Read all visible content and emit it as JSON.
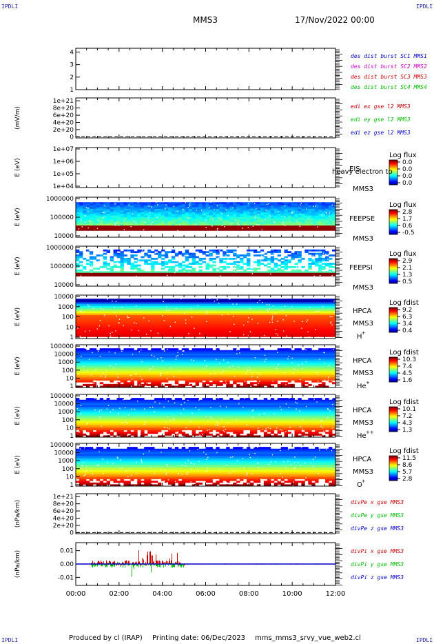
{
  "corner_label": "IPDLI",
  "header": {
    "mission": "MMS3",
    "datetime": "17/Nov/2022 00:00"
  },
  "footer": {
    "producer": "Produced by cl (IRAP)",
    "printing": "Printing date: 06/Dec/2023",
    "filename": "mms_mms3_srvy_vue_web2.cl"
  },
  "colors": {
    "blue": "#0000cc",
    "magenta": "#cc00cc",
    "red": "#cc0000",
    "green": "#00bb00"
  },
  "chart_data": [
    {
      "id": "dist",
      "type": "line",
      "ylabel": "",
      "yticks": [
        "1",
        "2",
        "3",
        "4"
      ],
      "ylim": [
        1,
        4.3
      ],
      "legend": [
        {
          "text": "des dist burst SC1 MMS1",
          "color": "blue"
        },
        {
          "text": "des dist burst SC2 MMS2",
          "color": "magenta"
        },
        {
          "text": "des dist burst SC3 MMS3",
          "color": "red"
        },
        {
          "text": "des dist burst SC4 MMS4",
          "color": "green"
        }
      ]
    },
    {
      "id": "edi",
      "type": "line",
      "ylabel": "(mV/m)",
      "yticks": [
        "0",
        "2e+20",
        "4e+20",
        "6e+20",
        "8e+20",
        "1e+21"
      ],
      "ylim": [
        -3e+19,
        1.08e+21
      ],
      "legend": [
        {
          "text": "edi ex gse l2 MMS3",
          "color": "red"
        },
        {
          "text": "edi ey gse l2 MMS3",
          "color": "green"
        },
        {
          "text": "edi ez gse l2 MMS3",
          "color": "blue"
        }
      ]
    },
    {
      "id": "eis",
      "type": "heatmap",
      "ylabel": "E (eV)",
      "yticks": [
        "1e+04",
        "1e+05",
        "1e+06",
        "1e+07"
      ],
      "instrument": "EIS",
      "sub": "MMS3",
      "extra": "heavy electron to",
      "cbar_title": "Log flux",
      "cbar_ticks": [
        "0.0",
        "0.0",
        "0.0",
        "0.0"
      ]
    },
    {
      "id": "feepse",
      "type": "heatmap",
      "ylabel": "E (eV)",
      "yticks": [
        "10000",
        "100000",
        "1000000"
      ],
      "instrument": "FEEPSE",
      "sub": "MMS3",
      "cbar_title": "Log flux",
      "cbar_ticks": [
        "2.8",
        "1.7",
        "0.6",
        "-0.5"
      ]
    },
    {
      "id": "feepsi",
      "type": "heatmap",
      "ylabel": "E (eV)",
      "yticks": [
        "10000",
        "100000",
        "1000000"
      ],
      "instrument": "FEEPSI",
      "sub": "MMS3",
      "cbar_title": "Log flux",
      "cbar_ticks": [
        "2.9",
        "2.1",
        "1.3",
        "0.5"
      ]
    },
    {
      "id": "hpca_h",
      "type": "heatmap",
      "ylabel": "E (eV)",
      "yticks": [
        "1",
        "10",
        "100",
        "1000",
        "10000"
      ],
      "instrument": "HPCA",
      "sub": "MMS3",
      "species": "H",
      "sup": "+",
      "cbar_title": "Log fdist",
      "cbar_ticks": [
        "9.2",
        "6.3",
        "3.4",
        "0.4"
      ]
    },
    {
      "id": "hpca_he",
      "type": "heatmap",
      "ylabel": "E (eV)",
      "yticks": [
        "1",
        "10",
        "100",
        "1000",
        "10000",
        "100000"
      ],
      "instrument": "HPCA",
      "sub": "MMS3",
      "species": "He",
      "sup": "+",
      "cbar_title": "Log fdist",
      "cbar_ticks": [
        "10.3",
        "7.4",
        "4.5",
        "1.6"
      ]
    },
    {
      "id": "hpca_hepp",
      "type": "heatmap",
      "ylabel": "E (eV)",
      "yticks": [
        "1",
        "10",
        "100",
        "1000",
        "10000",
        "100000"
      ],
      "instrument": "HPCA",
      "sub": "MMS3",
      "species": "He",
      "sup": "++",
      "cbar_title": "Log fdist",
      "cbar_ticks": [
        "10.1",
        "7.2",
        "4.3",
        "1.3"
      ]
    },
    {
      "id": "hpca_o",
      "type": "heatmap",
      "ylabel": "E (eV)",
      "yticks": [
        "1",
        "10",
        "100",
        "1000",
        "10000",
        "100000"
      ],
      "instrument": "HPCA",
      "sub": "MMS3",
      "species": "O",
      "sup": "+",
      "cbar_title": "Log fdist",
      "cbar_ticks": [
        "11.5",
        "8.6",
        "5.7",
        "2.8"
      ]
    },
    {
      "id": "divpe",
      "type": "line",
      "ylabel": "(nPa/km)",
      "yticks": [
        "0",
        "2e+20",
        "4e+20",
        "6e+20",
        "8e+20",
        "1e+21"
      ],
      "ylim": [
        -3e+19,
        1.08e+21
      ],
      "legend": [
        {
          "text": "divPe x gse MMS3",
          "color": "red"
        },
        {
          "text": "divPe y gse MMS3",
          "color": "green"
        },
        {
          "text": "divPe z gse MMS3",
          "color": "blue"
        }
      ]
    },
    {
      "id": "divpi",
      "type": "line",
      "ylabel": "(nPa/km)",
      "yticks": [
        "-0.01",
        "0.00",
        "0.01"
      ],
      "ylim": [
        -0.016,
        0.016
      ],
      "legend": [
        {
          "text": "divPi x gse MMS3",
          "color": "red"
        },
        {
          "text": "divPi y gse MMS3",
          "color": "green"
        },
        {
          "text": "divPi z gse MMS3",
          "color": "blue"
        }
      ]
    }
  ],
  "xaxis": {
    "ticks": [
      "00:00",
      "02:00",
      "04:00",
      "06:00",
      "08:00",
      "10:00",
      "12:00"
    ],
    "range_hours": [
      0,
      12
    ]
  }
}
